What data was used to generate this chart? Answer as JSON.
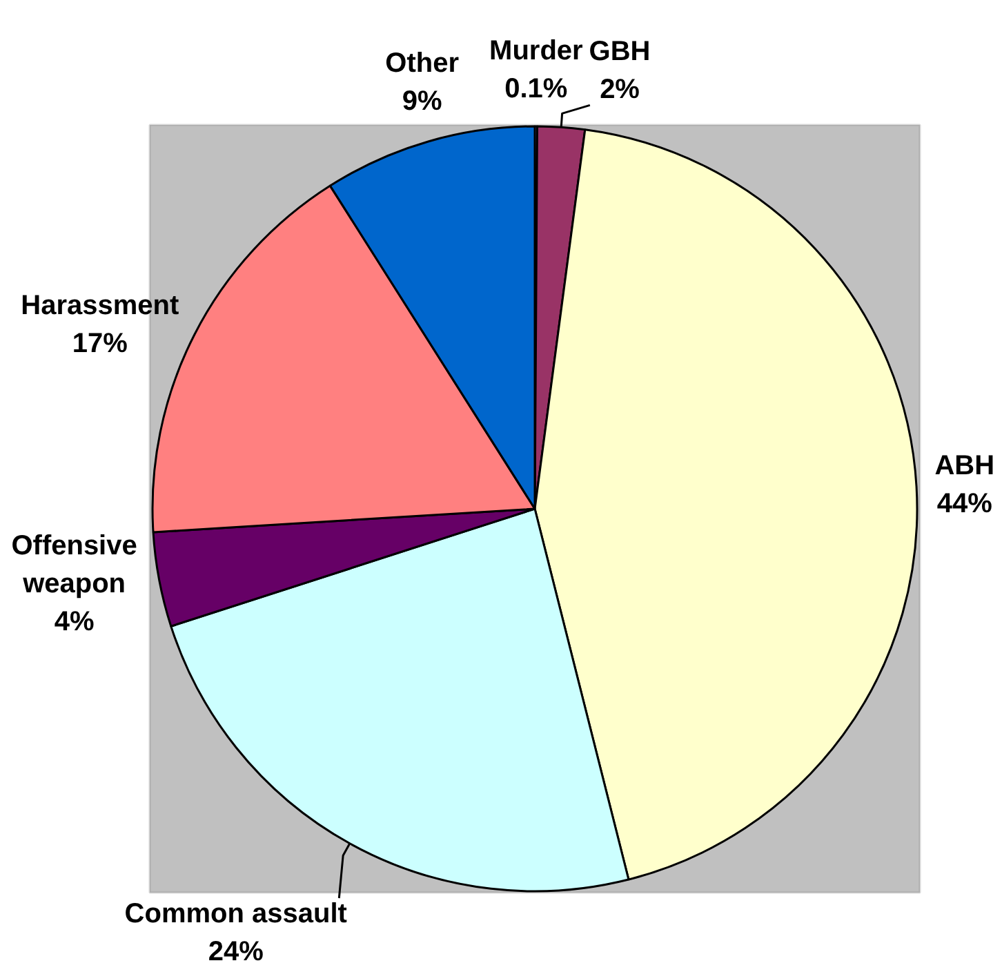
{
  "chart_data": {
    "type": "pie",
    "categories": [
      "Murder",
      "GBH",
      "ABH",
      "Common assault",
      "Offensive weapon",
      "Harassment",
      "Other"
    ],
    "values": [
      0.1,
      2,
      44,
      24,
      4,
      17,
      9
    ],
    "value_labels": [
      "0.1%",
      "2%",
      "44%",
      "24%",
      "4%",
      "17%",
      "9%"
    ],
    "colors": [
      "#9999ff",
      "#993366",
      "#ffffcc",
      "#ccffff",
      "#660066",
      "#ff8080",
      "#0066cc"
    ]
  }
}
